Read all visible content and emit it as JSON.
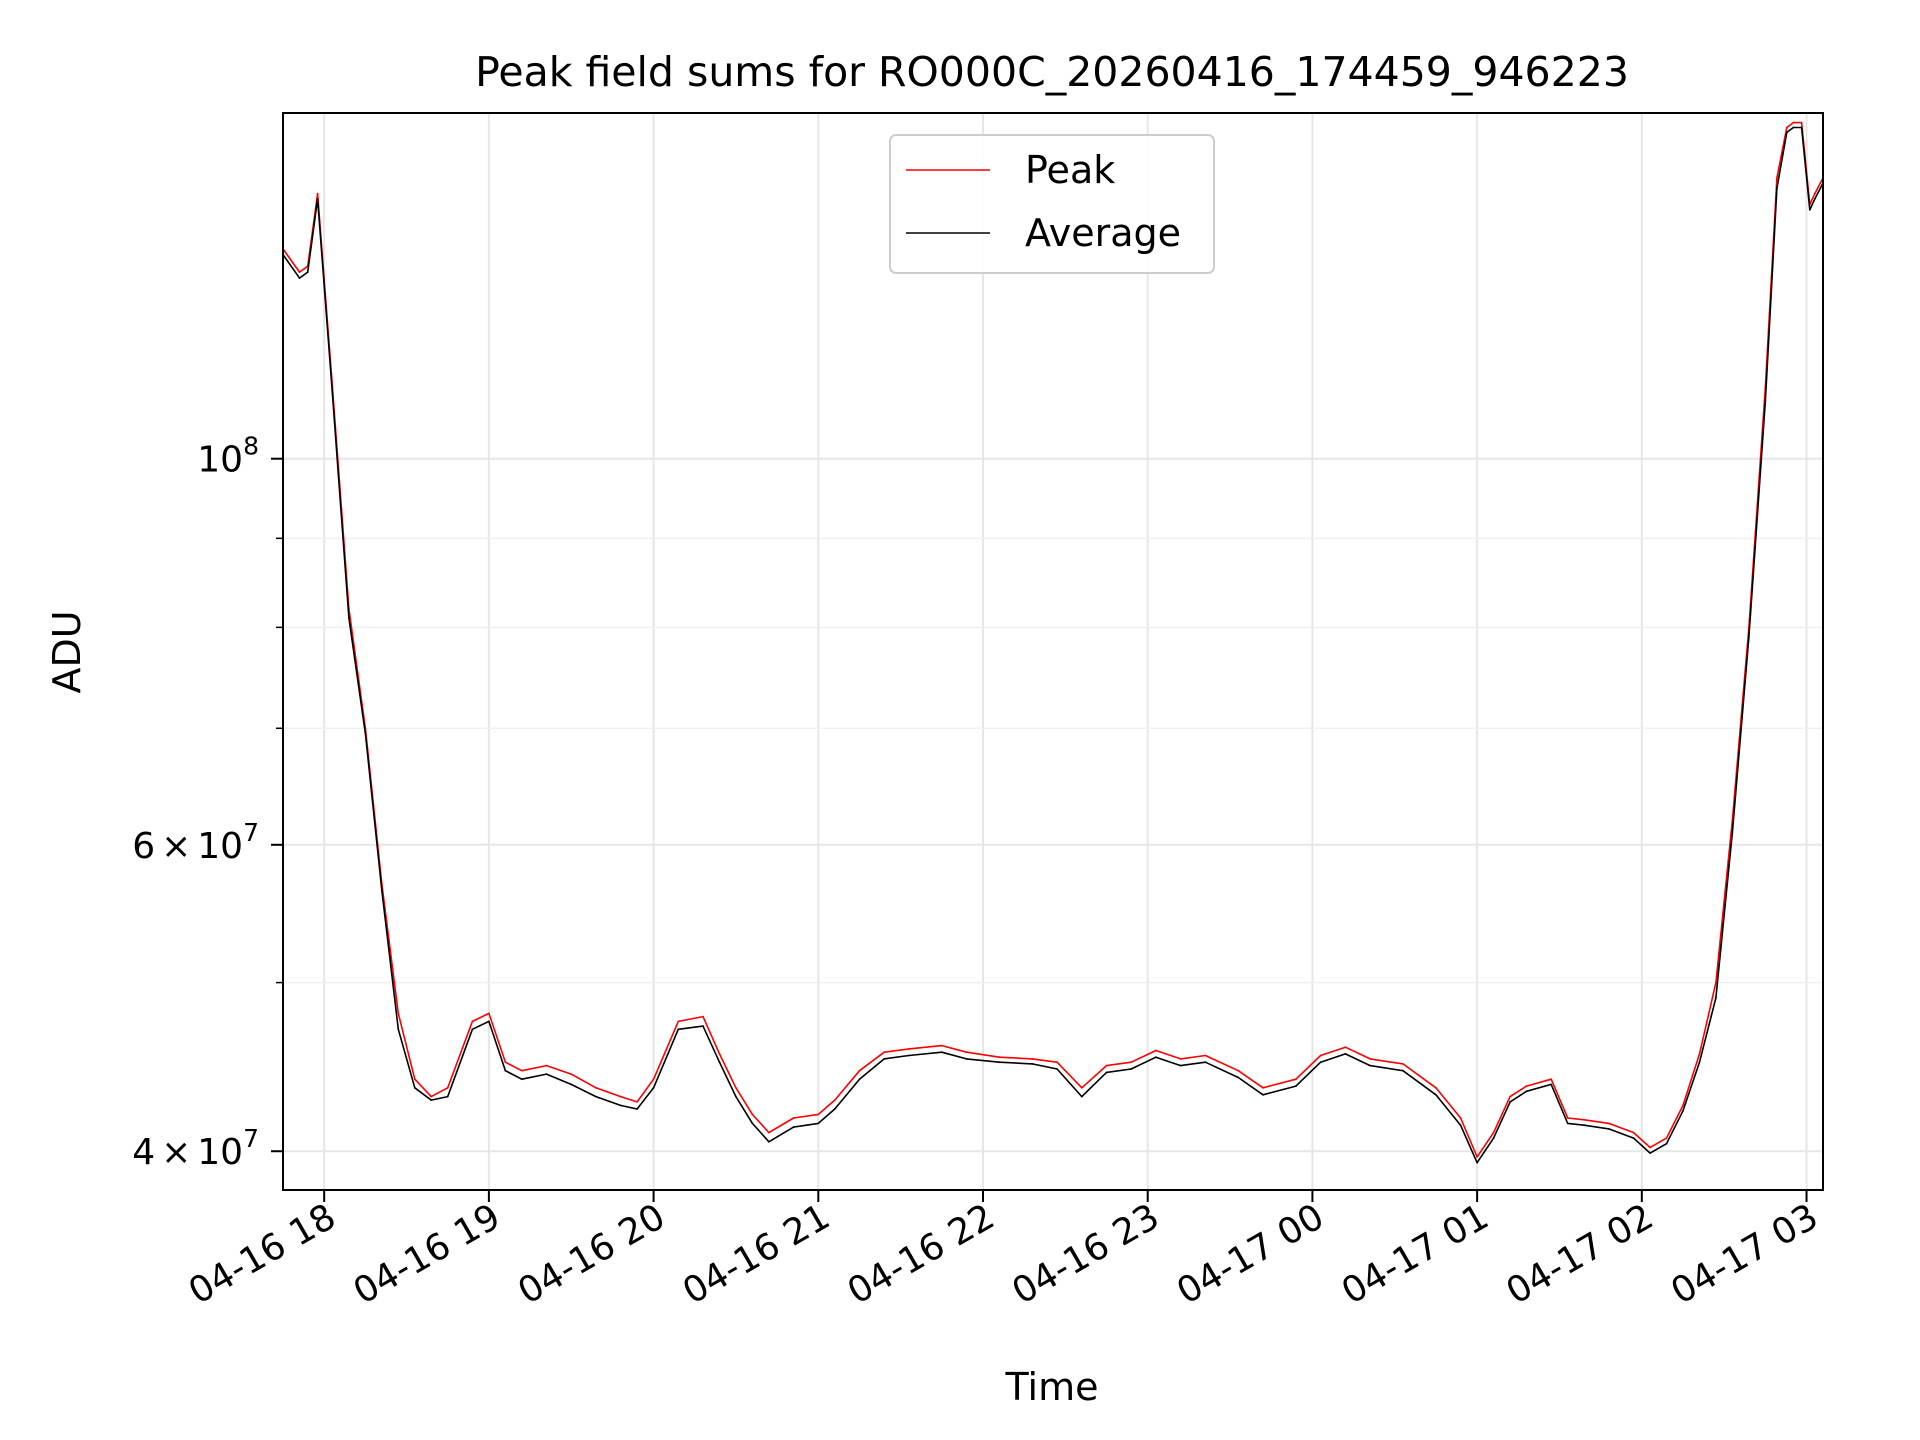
{
  "chart_data": {
    "type": "line",
    "title": "Peak field sums for RO000C_20260416_174459_946223",
    "xlabel": "Time",
    "ylabel": "ADU",
    "yscale": "log",
    "ylim": [
      38000000,
      158000000
    ],
    "xlim_hours": [
      17.75,
      27.1
    ],
    "grid": true,
    "legend": {
      "location": "upper center",
      "entries": [
        "Peak",
        "Average"
      ]
    },
    "x_ticks": [
      {
        "hour": 18,
        "label": "04-16 18"
      },
      {
        "hour": 19,
        "label": "04-16 19"
      },
      {
        "hour": 20,
        "label": "04-16 20"
      },
      {
        "hour": 21,
        "label": "04-16 21"
      },
      {
        "hour": 22,
        "label": "04-16 22"
      },
      {
        "hour": 23,
        "label": "04-16 23"
      },
      {
        "hour": 24,
        "label": "04-17 00"
      },
      {
        "hour": 25,
        "label": "04-17 01"
      },
      {
        "hour": 26,
        "label": "04-17 02"
      },
      {
        "hour": 27,
        "label": "04-17 03"
      }
    ],
    "y_major_ticks": [
      {
        "value": 100000000,
        "base": "10",
        "exp": "8",
        "mant": ""
      },
      {
        "value": 60000000,
        "base": "10",
        "exp": "7",
        "mant": "6"
      },
      {
        "value": 40000000,
        "base": "10",
        "exp": "7",
        "mant": "4"
      }
    ],
    "y_minor_ticks": [
      50000000,
      70000000,
      80000000,
      90000000
    ],
    "x_hours": [
      17.75,
      17.85,
      17.9,
      17.96,
      18.05,
      18.15,
      18.25,
      18.35,
      18.45,
      18.55,
      18.65,
      18.75,
      18.9,
      19.0,
      19.1,
      19.2,
      19.35,
      19.5,
      19.65,
      19.8,
      19.9,
      20.0,
      20.15,
      20.3,
      20.4,
      20.5,
      20.6,
      20.7,
      20.85,
      21.0,
      21.1,
      21.25,
      21.4,
      21.55,
      21.75,
      21.9,
      22.1,
      22.3,
      22.45,
      22.6,
      22.75,
      22.9,
      23.05,
      23.2,
      23.35,
      23.55,
      23.7,
      23.9,
      24.05,
      24.2,
      24.35,
      24.55,
      24.75,
      24.9,
      25.0,
      25.1,
      25.2,
      25.3,
      25.45,
      25.55,
      25.65,
      25.8,
      25.95,
      26.05,
      26.15,
      26.25,
      26.35,
      26.45,
      26.55,
      26.65,
      26.75,
      26.82,
      26.88,
      26.92,
      26.97,
      27.02,
      27.05,
      27.1
    ],
    "series": [
      {
        "name": "Peak",
        "color": "#ff0000",
        "values": [
          132000000,
          128000000,
          129000000,
          142000000,
          110000000,
          82000000,
          70000000,
          57000000,
          48000000,
          44000000,
          43000000,
          43500000,
          47500000,
          48000000,
          45000000,
          44500000,
          44800000,
          44300000,
          43500000,
          43000000,
          42700000,
          44000000,
          47500000,
          47800000,
          45500000,
          43500000,
          42000000,
          41000000,
          41800000,
          42000000,
          42800000,
          44500000,
          45600000,
          45800000,
          46000000,
          45600000,
          45300000,
          45200000,
          45000000,
          43500000,
          44800000,
          45000000,
          45700000,
          45200000,
          45400000,
          44500000,
          43500000,
          44000000,
          45400000,
          45900000,
          45200000,
          44900000,
          43500000,
          41800000,
          39700000,
          41000000,
          43000000,
          43600000,
          44000000,
          41800000,
          41700000,
          41500000,
          41000000,
          40200000,
          40700000,
          42500000,
          45500000,
          50000000,
          62000000,
          80000000,
          110000000,
          145000000,
          155000000,
          156000000,
          156000000,
          140000000,
          142000000,
          145000000
        ]
      },
      {
        "name": "Average",
        "color": "#000000",
        "values": [
          131000000,
          127000000,
          128000000,
          141000000,
          109000000,
          81000000,
          69500000,
          56500000,
          47000000,
          43500000,
          42800000,
          43000000,
          47000000,
          47500000,
          44500000,
          44000000,
          44300000,
          43700000,
          43000000,
          42500000,
          42300000,
          43500000,
          47000000,
          47200000,
          45000000,
          43000000,
          41500000,
          40500000,
          41300000,
          41500000,
          42300000,
          44000000,
          45200000,
          45400000,
          45600000,
          45200000,
          45000000,
          44900000,
          44600000,
          43000000,
          44400000,
          44600000,
          45300000,
          44800000,
          45000000,
          44100000,
          43100000,
          43600000,
          45000000,
          45500000,
          44800000,
          44500000,
          43100000,
          41400000,
          39400000,
          40700000,
          42700000,
          43300000,
          43700000,
          41500000,
          41400000,
          41200000,
          40700000,
          39900000,
          40400000,
          42200000,
          45000000,
          49000000,
          61000000,
          79000000,
          108000000,
          143000000,
          154000000,
          155000000,
          155000000,
          139000000,
          141000000,
          144000000
        ]
      }
    ]
  }
}
